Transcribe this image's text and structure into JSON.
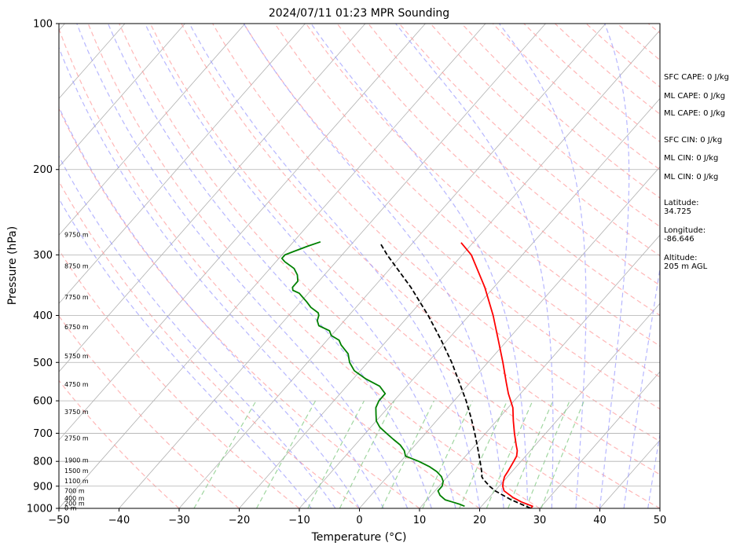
{
  "chart_data": {
    "type": "line",
    "title": "2024/07/11 01:23 MPR Sounding",
    "xlabel": "Temperature (°C)",
    "ylabel": "Pressure (hPa)",
    "xlim": [
      -50,
      50
    ],
    "ylim": [
      1000,
      100
    ],
    "y_scale": "log",
    "x_ticks": [
      "−50",
      "−40",
      "−30",
      "−20",
      "−10",
      "0",
      "10",
      "20",
      "30",
      "40",
      "50"
    ],
    "y_ticks": [
      "100",
      "200",
      "300",
      "400",
      "500",
      "600",
      "700",
      "800",
      "900",
      "1000"
    ],
    "grid": true,
    "series": [
      {
        "role": "temperature",
        "color": "#ff0000",
        "style": "solid",
        "points": [
          [
            1000,
            28.5
          ],
          [
            990,
            28.5
          ],
          [
            970,
            26.0
          ],
          [
            950,
            24.0
          ],
          [
            920,
            21.5
          ],
          [
            900,
            20.6
          ],
          [
            880,
            20.0
          ],
          [
            860,
            19.5
          ],
          [
            840,
            19.3
          ],
          [
            800,
            18.8
          ],
          [
            780,
            18.5
          ],
          [
            760,
            17.8
          ],
          [
            740,
            16.8
          ],
          [
            700,
            14.8
          ],
          [
            660,
            12.8
          ],
          [
            620,
            10.8
          ],
          [
            580,
            8.0
          ],
          [
            550,
            6.0
          ],
          [
            500,
            2.5
          ],
          [
            450,
            -1.5
          ],
          [
            400,
            -6.0
          ],
          [
            350,
            -11.5
          ],
          [
            300,
            -18.5
          ],
          [
            283,
            -22.0
          ]
        ]
      },
      {
        "role": "dewpoint",
        "color": "#008000",
        "style": "solid",
        "points": [
          [
            990,
            17.2
          ],
          [
            980,
            16.0
          ],
          [
            970,
            14.5
          ],
          [
            960,
            13.0
          ],
          [
            940,
            11.5
          ],
          [
            920,
            10.5
          ],
          [
            900,
            10.5
          ],
          [
            880,
            10.0
          ],
          [
            860,
            9.0
          ],
          [
            840,
            7.5
          ],
          [
            820,
            5.5
          ],
          [
            800,
            3.0
          ],
          [
            780,
            0.0
          ],
          [
            760,
            -1.0
          ],
          [
            740,
            -2.5
          ],
          [
            720,
            -4.5
          ],
          [
            700,
            -6.5
          ],
          [
            680,
            -8.5
          ],
          [
            660,
            -10.0
          ],
          [
            640,
            -11.0
          ],
          [
            620,
            -12.0
          ],
          [
            600,
            -12.5
          ],
          [
            580,
            -12.5
          ],
          [
            560,
            -14.5
          ],
          [
            540,
            -18.0
          ],
          [
            520,
            -21.0
          ],
          [
            500,
            -23.0
          ],
          [
            480,
            -24.5
          ],
          [
            460,
            -27.0
          ],
          [
            450,
            -28.0
          ],
          [
            440,
            -30.0
          ],
          [
            430,
            -31.0
          ],
          [
            420,
            -33.5
          ],
          [
            410,
            -34.5
          ],
          [
            400,
            -35.0
          ],
          [
            395,
            -35.5
          ],
          [
            385,
            -37.5
          ],
          [
            375,
            -39.0
          ],
          [
            360,
            -41.5
          ],
          [
            355,
            -43.0
          ],
          [
            350,
            -43.5
          ],
          [
            340,
            -43.5
          ],
          [
            330,
            -44.5
          ],
          [
            320,
            -46.0
          ],
          [
            310,
            -48.5
          ],
          [
            305,
            -49.5
          ],
          [
            300,
            -49.5
          ],
          [
            295,
            -48.5
          ],
          [
            288,
            -47.0
          ],
          [
            282,
            -45.5
          ]
        ]
      },
      {
        "role": "parcel",
        "color": "#000000",
        "style": "dashed",
        "points": [
          [
            1000,
            28.5
          ],
          [
            960,
            24.0
          ],
          [
            920,
            20.0
          ],
          [
            900,
            18.4
          ],
          [
            870,
            16.3
          ],
          [
            860,
            15.7
          ],
          [
            850,
            15.4
          ],
          [
            800,
            13.2
          ],
          [
            750,
            10.8
          ],
          [
            700,
            8.2
          ],
          [
            650,
            5.3
          ],
          [
            600,
            2.0
          ],
          [
            550,
            -1.8
          ],
          [
            500,
            -6.0
          ],
          [
            450,
            -11.0
          ],
          [
            400,
            -16.8
          ],
          [
            350,
            -23.8
          ],
          [
            300,
            -32.5
          ],
          [
            283,
            -35.5
          ]
        ]
      }
    ],
    "height_labels": [
      "0 m",
      "200 m",
      "400 m",
      "700 m",
      "1100 m",
      "1500 m",
      "1900 m",
      "2750 m",
      "3750 m",
      "4750 m",
      "5750 m",
      "6750 m",
      "7750 m",
      "8750 m",
      "9750 m"
    ],
    "height_label_pressures": [
      1000,
      977,
      954,
      922,
      879,
      837,
      797,
      718,
      633,
      556,
      486,
      423,
      367,
      317,
      273
    ]
  },
  "side_info": {
    "sfc_cape": "SFC CAPE: 0 J/kg",
    "ml_cape_1": "ML CAPE: 0 J/kg",
    "ml_cape_2": "ML CAPE: 0 J/kg",
    "sfc_cin": "SFC CIN: 0 J/kg",
    "ml_cin_1": "ML CIN: 0 J/kg",
    "ml_cin_2": "ML CIN: 0 J/kg",
    "latitude_label": "Latitude:",
    "latitude_value": "34.725",
    "longitude_label": "Longitude:",
    "longitude_value": "-86.646",
    "altitude_label": "Altitude:",
    "altitude_value": "205 m AGL"
  },
  "colors": {
    "isotherm": "#b0b0b0",
    "dry_adiabat": "#ff9999",
    "moist_adiabat": "#9999ff",
    "mixing_ratio": "#88cc88",
    "grid": "#b0b0b0"
  }
}
